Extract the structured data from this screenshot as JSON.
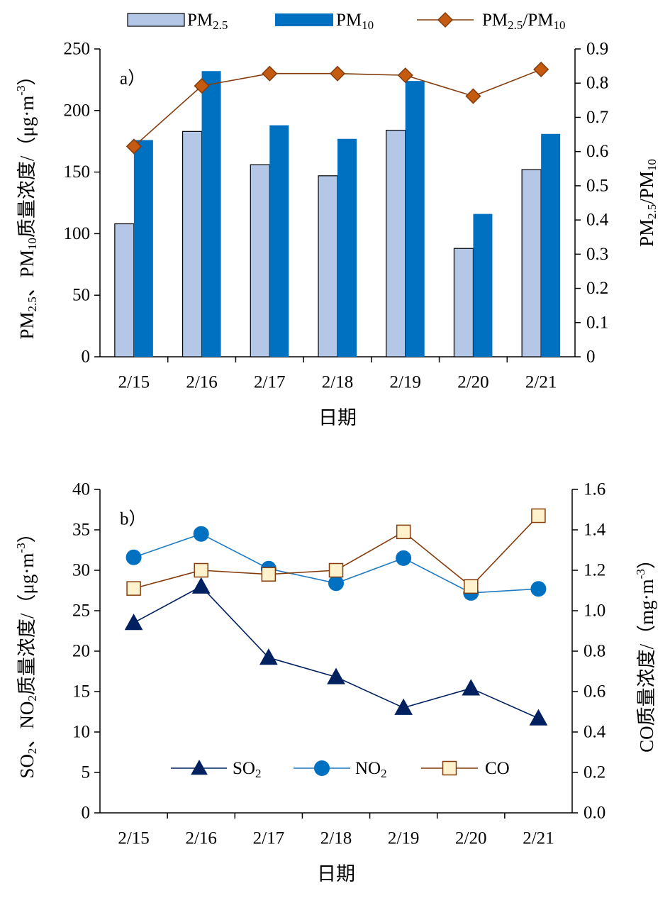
{
  "chart_data": [
    {
      "type": "bar",
      "panel_label": "a）",
      "categories": [
        "2/15",
        "2/16",
        "2/17",
        "2/18",
        "2/19",
        "2/20",
        "2/21"
      ],
      "xlabel": "日期",
      "ylabel": {
        "pre": "PM",
        "sub1": "2.5",
        "mid": "、PM",
        "sub2": "10",
        "post": "质量浓度/（μg·m",
        "sup": "-3",
        "end": "）"
      },
      "ylabel_right": {
        "pre": "PM",
        "sub1": "2.5",
        "mid": "/PM",
        "sub2": "10"
      },
      "ylim": [
        0,
        250
      ],
      "yticks": [
        "0",
        "50",
        "100",
        "150",
        "200",
        "250"
      ],
      "ylim_right": [
        0,
        0.9
      ],
      "yticks_right": [
        "0",
        "0.1",
        "0.2",
        "0.3",
        "0.4",
        "0.5",
        "0.6",
        "0.7",
        "0.8",
        "0.9"
      ],
      "legend_position": "top",
      "series": [
        {
          "name": "PM",
          "name_sub": "2.5",
          "kind": "bar",
          "color": "#b4c7e7",
          "values": [
            108,
            183,
            156,
            147,
            184,
            88,
            152
          ]
        },
        {
          "name": "PM",
          "name_sub": "10",
          "kind": "bar",
          "color": "#0070c0",
          "values": [
            176,
            232,
            188,
            177,
            224,
            116,
            181
          ]
        },
        {
          "name": "PM",
          "name_sub": "2.5",
          "name_mid": "/PM",
          "name_sub2": "10",
          "kind": "line",
          "axis": "right",
          "color": "#843c0c",
          "marker_color": "#c55a11",
          "marker": "diamond",
          "values": [
            0.615,
            0.792,
            0.828,
            0.828,
            0.823,
            0.762,
            0.84
          ]
        }
      ]
    },
    {
      "type": "line",
      "panel_label": "b）",
      "categories": [
        "2/15",
        "2/16",
        "2/17",
        "2/18",
        "2/19",
        "2/20",
        "2/21"
      ],
      "xlabel": "日期",
      "ylabel": {
        "pre": "SO",
        "sub1": "2",
        "mid": "、NO",
        "sub2": "2",
        "post": "质量浓度/（μg·m",
        "sup": "-3",
        "end": "）"
      },
      "ylabel_right": {
        "pre": "CO质量浓度/（mg·m",
        "sup": "-3",
        "end": "）"
      },
      "ylim": [
        0,
        40
      ],
      "yticks": [
        "0",
        "5",
        "10",
        "15",
        "20",
        "25",
        "30",
        "35",
        "40"
      ],
      "ylim_right": [
        0,
        1.6
      ],
      "yticks_right": [
        "0.0",
        "0.2",
        "0.4",
        "0.6",
        "0.8",
        "1.0",
        "1.2",
        "1.4",
        "1.6"
      ],
      "legend_position": "bottom-center",
      "series": [
        {
          "name": "SO",
          "name_sub": "2",
          "axis": "left",
          "color": "#002060",
          "marker": "triangle",
          "values": [
            23.5,
            28.0,
            19.2,
            16.8,
            13.0,
            15.4,
            11.7
          ]
        },
        {
          "name": "NO",
          "name_sub": "2",
          "axis": "left",
          "color": "#1f7ac0",
          "marker_color": "#0070c0",
          "marker": "circle",
          "values": [
            31.6,
            34.5,
            30.2,
            28.4,
            31.5,
            27.2,
            27.7
          ]
        },
        {
          "name": "CO",
          "axis": "right",
          "color": "#843c0c",
          "marker_color": "#fff2cc",
          "marker": "square",
          "values": [
            1.11,
            1.2,
            1.18,
            1.2,
            1.39,
            1.12,
            1.47
          ]
        }
      ]
    }
  ]
}
